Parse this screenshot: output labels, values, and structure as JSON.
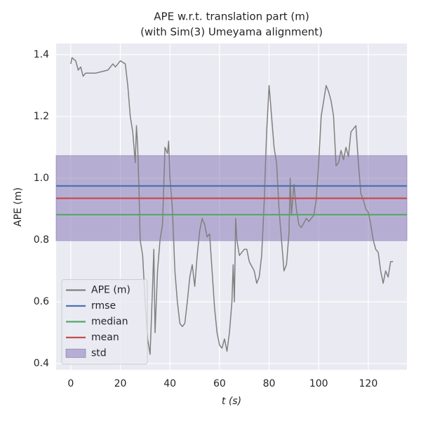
{
  "chart_data": {
    "type": "line",
    "title": "APE w.r.t. translation part (m)",
    "subtitle": "(with Sim(3) Umeyama alignment)",
    "xlabel": "t (s)",
    "ylabel": "APE (m)",
    "xlim": [
      -5.9,
      135.6
    ],
    "ylim": [
      0.38,
      1.436
    ],
    "xticks": [
      0,
      20,
      40,
      60,
      80,
      100,
      120
    ],
    "yticks": [
      0.4,
      0.6,
      0.8,
      {
        "value": 1.0,
        "label": "1.0"
      },
      1.2,
      1.4
    ],
    "grid": true,
    "legend": "lower left",
    "series": [
      {
        "name": "APE (m)",
        "color": "#808080",
        "x": [
          0,
          0.5,
          2,
          3,
          4,
          5,
          6,
          10,
          15,
          17,
          18,
          20,
          22,
          23,
          24,
          25,
          25.5,
          26,
          26.5,
          27,
          27.5,
          28,
          29,
          30,
          31,
          32,
          33,
          33.5,
          34,
          35,
          36,
          37,
          38,
          39,
          39.5,
          40,
          41,
          42,
          43,
          44,
          45,
          46,
          47,
          48,
          49,
          50,
          51,
          52,
          53,
          54,
          55,
          56,
          57,
          58,
          59,
          60,
          61,
          62,
          63,
          64,
          65,
          65.5,
          66,
          66.5,
          67,
          68,
          70,
          71,
          72,
          74,
          75,
          76,
          77,
          78,
          79,
          80,
          81,
          82,
          83,
          84,
          85,
          86,
          87,
          88,
          88.5,
          89,
          90,
          91,
          92,
          93,
          95,
          96,
          98,
          99,
          100,
          101,
          102,
          103,
          104,
          105,
          106,
          107,
          108,
          109,
          110,
          111,
          112,
          113,
          114,
          115,
          116,
          117,
          118,
          119,
          120,
          121,
          122,
          123,
          124,
          125,
          126,
          127,
          128,
          129,
          130
        ],
        "values": [
          1.37,
          1.39,
          1.38,
          1.35,
          1.36,
          1.33,
          1.34,
          1.34,
          1.35,
          1.37,
          1.36,
          1.38,
          1.37,
          1.3,
          1.2,
          1.15,
          1.1,
          1.05,
          1.17,
          1.1,
          0.97,
          0.8,
          0.75,
          0.6,
          0.48,
          0.43,
          0.65,
          0.77,
          0.5,
          0.7,
          0.8,
          0.85,
          1.1,
          1.08,
          1.12,
          1.0,
          0.9,
          0.7,
          0.6,
          0.53,
          0.52,
          0.53,
          0.6,
          0.68,
          0.72,
          0.65,
          0.75,
          0.83,
          0.87,
          0.85,
          0.81,
          0.82,
          0.7,
          0.58,
          0.5,
          0.46,
          0.45,
          0.48,
          0.44,
          0.5,
          0.6,
          0.72,
          0.6,
          0.87,
          0.8,
          0.75,
          0.77,
          0.77,
          0.73,
          0.7,
          0.66,
          0.68,
          0.75,
          0.92,
          1.15,
          1.3,
          1.2,
          1.1,
          1.05,
          0.9,
          0.8,
          0.7,
          0.72,
          0.82,
          1.0,
          0.88,
          0.98,
          0.9,
          0.85,
          0.84,
          0.87,
          0.86,
          0.88,
          0.93,
          1.05,
          1.2,
          1.25,
          1.3,
          1.28,
          1.25,
          1.2,
          1.04,
          1.05,
          1.09,
          1.06,
          1.1,
          1.07,
          1.15,
          1.16,
          1.17,
          1.05,
          0.95,
          0.93,
          0.9,
          0.89,
          0.85,
          0.8,
          0.77,
          0.76,
          0.7,
          0.66,
          0.7,
          0.68,
          0.73,
          0.73
        ]
      },
      {
        "name": "rmse",
        "color": "#4c72b0",
        "values": [
          0.975
        ]
      },
      {
        "name": "median",
        "color": "#55a868",
        "values": [
          0.882
        ]
      },
      {
        "name": "mean",
        "color": "#c44e52",
        "values": [
          0.935
        ]
      },
      {
        "name": "std",
        "color": "#8172b2",
        "values": [
          0.798,
          1.073
        ]
      }
    ]
  }
}
